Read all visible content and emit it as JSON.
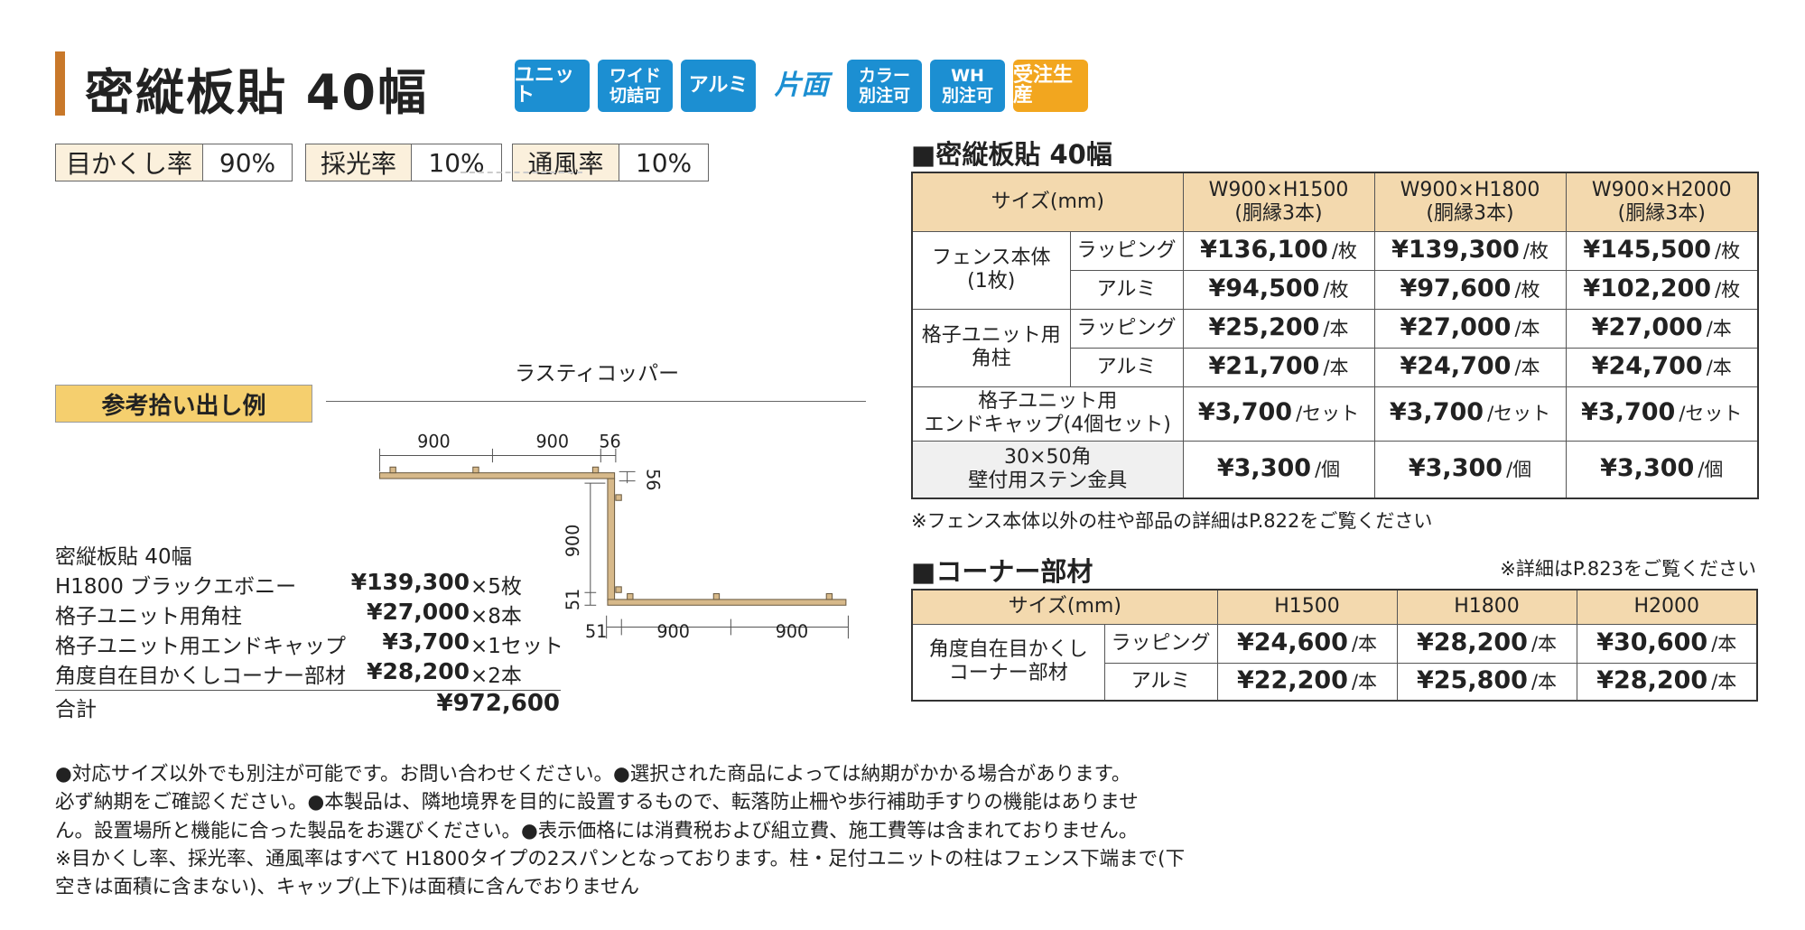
{
  "header": {
    "title": "密縦板貼 40幅",
    "badges": [
      [
        "ユニット"
      ],
      [
        "ワイド",
        "切詰可"
      ],
      [
        "アルミ"
      ],
      [
        "片面"
      ],
      [
        "カラー",
        "別注可"
      ],
      [
        "WH",
        "別注可"
      ],
      [
        "受注生産"
      ]
    ]
  },
  "ratings": [
    {
      "label": "目かくし率",
      "value": "90%"
    },
    {
      "label": "採光率",
      "value": "10%"
    },
    {
      "label": "通風率",
      "value": "10%"
    }
  ],
  "color_name": "ラスティコッパー",
  "example": {
    "title": "参考拾い出し例",
    "diagram": {
      "dimensions": [
        "900",
        "900",
        "56",
        "56",
        "900",
        "51",
        "51",
        "900",
        "900"
      ]
    },
    "estimate": {
      "title": "密縦板貼 40幅",
      "rows": [
        [
          "H1800 ブラックエボニー",
          "¥139,300",
          "×5枚"
        ],
        [
          "格子ユニット用角柱",
          "¥27,000",
          "×8本"
        ],
        [
          "格子ユニット用エンドキャップ",
          "¥3,700",
          "×1セット"
        ],
        [
          "角度自在目かくしコーナー部材",
          "¥28,200",
          "×2本"
        ]
      ],
      "total": [
        "合計",
        "¥972,600"
      ]
    }
  },
  "price_table": {
    "title": "■密縦板貼 40幅",
    "header": [
      [
        "サイズ(mm)"
      ],
      [
        "W900×H1500",
        "(胴縁3本)"
      ],
      [
        "W900×H1800",
        "(胴縁3本)"
      ],
      [
        "W900×H2000",
        "(胴縁3本)"
      ]
    ],
    "groups": [
      {
        "label": [
          "フェンス本体",
          "(1枚)"
        ],
        "rows": [
          {
            "material": "ラッピング",
            "prices": [
              {
                "price": "¥136,100",
                "unit": "/枚"
              },
              {
                "price": "¥139,300",
                "unit": "/枚"
              },
              {
                "price": "¥145,500",
                "unit": "/枚"
              }
            ]
          },
          {
            "material": "アルミ",
            "prices": [
              {
                "price": "¥94,500",
                "unit": "/枚"
              },
              {
                "price": "¥97,600",
                "unit": "/枚"
              },
              {
                "price": "¥102,200",
                "unit": "/枚"
              }
            ]
          }
        ]
      },
      {
        "label": [
          "格子ユニット用",
          "角柱"
        ],
        "rows": [
          {
            "material": "ラッピング",
            "prices": [
              {
                "price": "¥25,200",
                "unit": "/本"
              },
              {
                "price": "¥27,000",
                "unit": "/本"
              },
              {
                "price": "¥27,000",
                "unit": "/本"
              }
            ]
          },
          {
            "material": "アルミ",
            "prices": [
              {
                "price": "¥21,700",
                "unit": "/本"
              },
              {
                "price": "¥24,700",
                "unit": "/本"
              },
              {
                "price": "¥24,700",
                "unit": "/本"
              }
            ]
          }
        ]
      },
      {
        "label": [
          "格子ユニット用",
          "エンドキャップ(4個セット)"
        ],
        "prices": [
          {
            "price": "¥3,700",
            "unit": "/セット"
          },
          {
            "price": "¥3,700",
            "unit": "/セット"
          },
          {
            "price": "¥3,700",
            "unit": "/セット"
          }
        ]
      },
      {
        "label": [
          "30×50角",
          "壁付用ステン金具"
        ],
        "prices": [
          {
            "price": "¥3,300",
            "unit": "/個"
          },
          {
            "price": "¥3,300",
            "unit": "/個"
          },
          {
            "price": "¥3,300",
            "unit": "/個"
          }
        ]
      }
    ],
    "note": "※フェンス本体以外の柱や部品の詳細はP.822をご覧ください"
  },
  "corner_table": {
    "title": "■コーナー部材",
    "note": "※詳細はP.823をご覧ください",
    "header": [
      [
        "サイズ(mm)"
      ],
      [
        "H1500"
      ],
      [
        "H1800"
      ],
      [
        "H2000"
      ]
    ],
    "groups": [
      {
        "label": [
          "角度自在目かくし",
          "コーナー部材"
        ],
        "rows": [
          {
            "material": "ラッピング",
            "prices": [
              {
                "price": "¥24,600",
                "unit": "/本"
              },
              {
                "price": "¥28,200",
                "unit": "/本"
              },
              {
                "price": "¥30,600",
                "unit": "/本"
              }
            ]
          },
          {
            "material": "アルミ",
            "prices": [
              {
                "price": "¥22,200",
                "unit": "/本"
              },
              {
                "price": "¥25,800",
                "unit": "/本"
              },
              {
                "price": "¥28,200",
                "unit": "/本"
              }
            ]
          }
        ]
      }
    ]
  },
  "footer_notes": [
    "●対応サイズ以外でも別注が可能です。お問い合わせください。●選択された商品によっては納期がかかる場合があります。",
    "必ず納期をご確認ください。●本製品は、隣地境界を目的に設置するもので、転落防止柵や歩行補助手すりの機能はありませ",
    "ん。設置場所と機能に合った製品をお選びください。●表示価格には消費税および組立費、施工費等は含まれておりません。",
    "※目かくし率、採光率、通風率はすべて H1800タイプの2スパンとなっております。柱・足付ユニットの柱はフェンス下端まで(下",
    "空きは面積に含まない)、キャップ(上下)は面積に含んでおりません"
  ]
}
